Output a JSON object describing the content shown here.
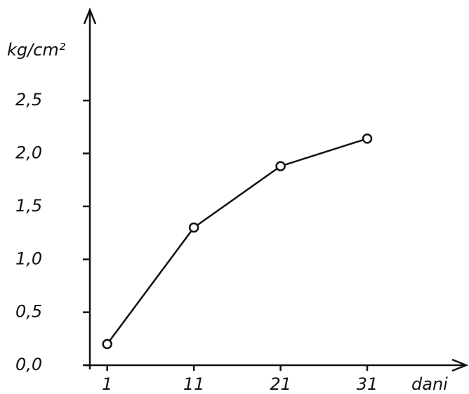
{
  "chart_data": {
    "type": "line",
    "y_label": "kg/cm²",
    "x_label": "dani",
    "x": [
      1,
      11,
      21,
      31
    ],
    "series": [
      {
        "color": "#111111",
        "values": [
          0.2,
          1.3,
          1.88,
          2.14
        ]
      }
    ],
    "xlim": [
      -1,
      42.5
    ],
    "xticks": [
      1,
      11,
      21,
      31
    ],
    "ylim": [
      0,
      3.35
    ],
    "yticks": [
      {
        "value": 0,
        "label": "0,0"
      },
      {
        "value": 0.5,
        "label": "0,5"
      },
      {
        "value": 1,
        "label": "1,0"
      },
      {
        "value": 1.5,
        "label": "1,5"
      },
      {
        "value": 2,
        "label": "2,0"
      },
      {
        "value": 2.5,
        "label": "2,5"
      }
    ],
    "grid": false
  }
}
